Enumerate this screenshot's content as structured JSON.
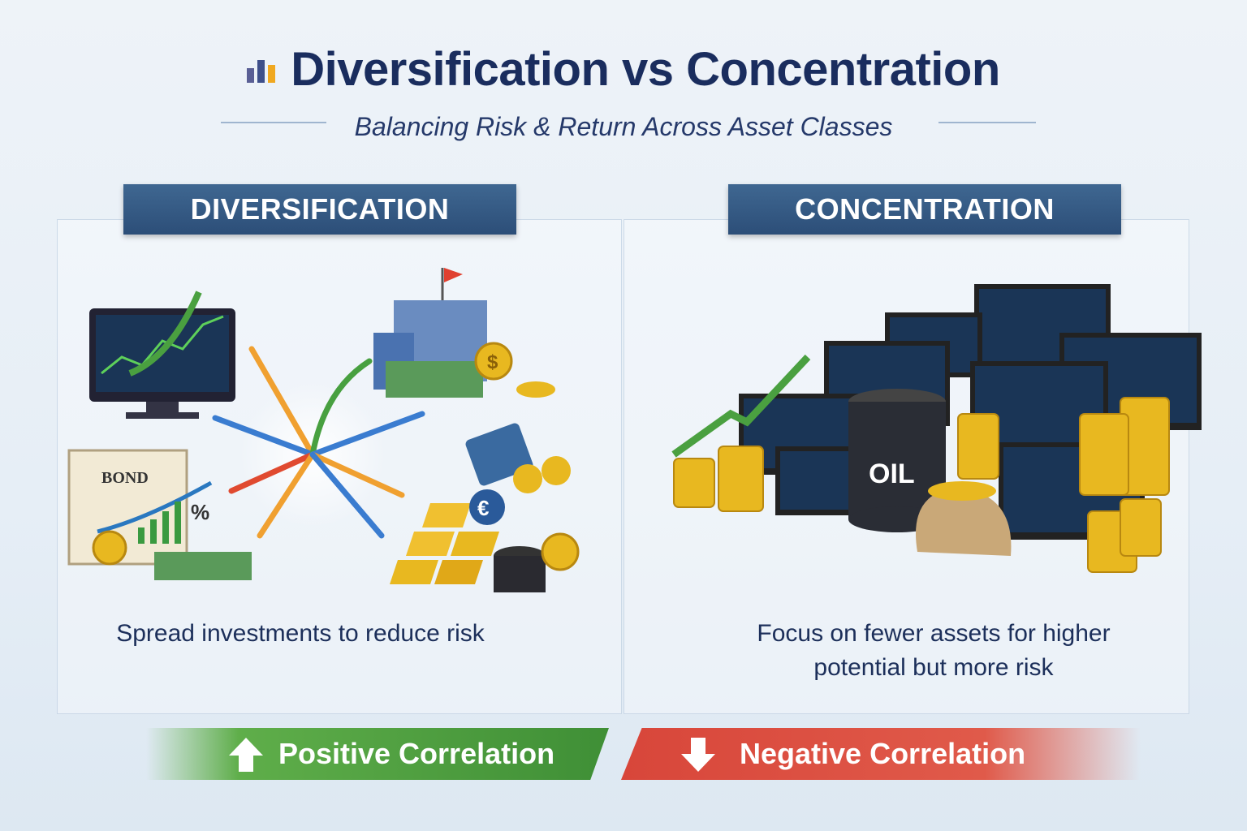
{
  "header": {
    "title": "Diversification vs Concentration",
    "subtitle": "Balancing Risk & Return Across Asset Classes",
    "icon": "bar-chart-icon"
  },
  "left": {
    "heading": "DIVERSIFICATION",
    "caption": "Spread investments to reduce risk",
    "bond_label": "BOND",
    "percent_label": "%"
  },
  "right": {
    "heading": "CONCENTRATION",
    "caption_line1": "Focus on fewer assets for higher",
    "caption_line2": "potential but more risk",
    "oil_label": "OIL"
  },
  "footer": {
    "positive": "Positive Correlation",
    "negative": "Negative Correlation"
  },
  "colors": {
    "navy": "#1a2d5e",
    "header_blue": "#2c4e78",
    "green": "#4a9e3e",
    "red": "#d8463a",
    "gold": "#e8b820"
  }
}
